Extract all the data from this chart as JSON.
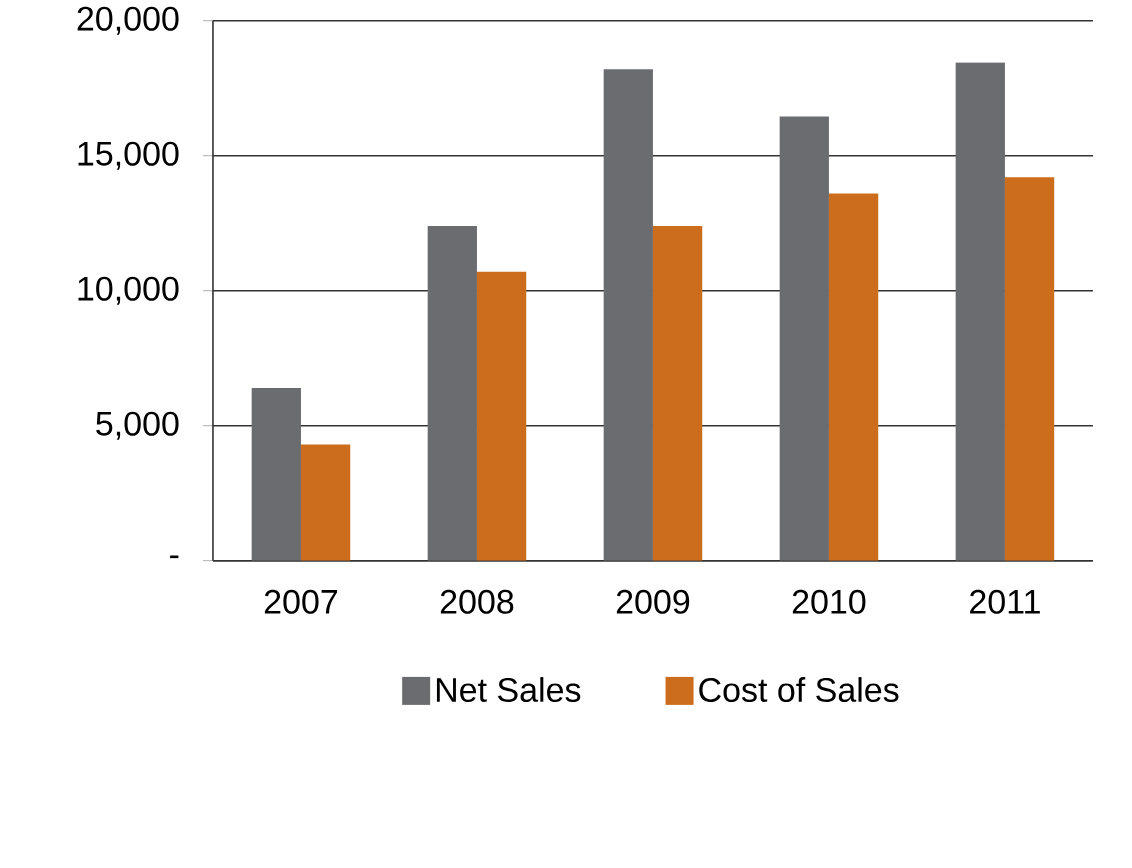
{
  "chart_data": {
    "type": "bar",
    "categories": [
      "2007",
      "2008",
      "2009",
      "2010",
      "2011"
    ],
    "series": [
      {
        "name": "Net Sales",
        "color": "#6b6c70",
        "values": [
          6400,
          12400,
          18200,
          16450,
          18450
        ]
      },
      {
        "name": "Cost of Sales",
        "color": "#cc6d1d",
        "values": [
          4300,
          10700,
          12400,
          13600,
          14200
        ]
      }
    ],
    "ylim": [
      0,
      20000
    ],
    "yticks": [
      {
        "value": 0,
        "label": "-"
      },
      {
        "value": 5000,
        "label": "5,000"
      },
      {
        "value": 10000,
        "label": "10,000"
      },
      {
        "value": 15000,
        "label": "15,000"
      },
      {
        "value": 20000,
        "label": "20,000"
      }
    ],
    "grid": "y",
    "legend": "bottom"
  }
}
